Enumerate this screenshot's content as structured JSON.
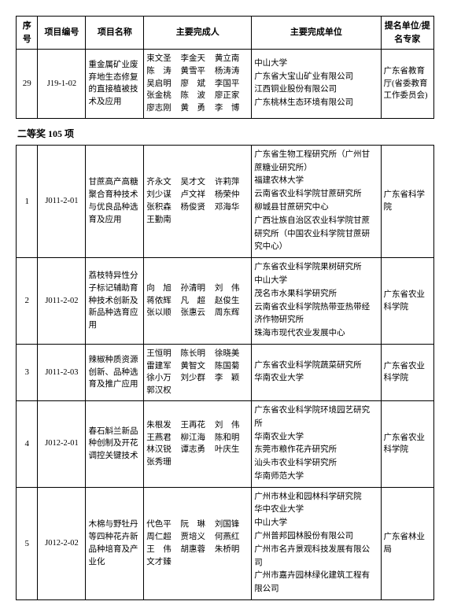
{
  "headers": {
    "seq": "序号",
    "code": "项目编号",
    "name": "项目名称",
    "people": "主要完成人",
    "org": "主要完成单位",
    "nom": "提名单位/提名专家"
  },
  "section_heading": "二等奖 105 项",
  "top_row": {
    "seq": "29",
    "code": "J19-1-02",
    "name": "重金属矿业废弃地生态修复的直接植被技术及应用",
    "people": [
      "束文圣",
      "李金天",
      "黄立南",
      "陈　涛",
      "黄雪平",
      "杨涛涛",
      "吴启明",
      "廖　斌",
      "李国平",
      "张金桃",
      "陈　波",
      "廖正家",
      "廖志刚",
      "黄　勇",
      "李　博"
    ],
    "org": [
      "中山大学",
      "广东省大宝山矿业有限公司",
      "江西铜业股份有限公司",
      "广东桃林生态环境有限公司"
    ],
    "nom": "广东省教育厅(省委教育工作委员会)"
  },
  "rows": [
    {
      "seq": "1",
      "code": "J011-2-01",
      "name": "甘蔗高产高糖聚合育种技术与优良品种选育及应用",
      "people": [
        "齐永文",
        "吴才文",
        "许莉萍",
        "刘少谋",
        "卢文祥",
        "杨荣仲",
        "张积森",
        "杨俊贤",
        "邓海华",
        "王勤南"
      ],
      "org": [
        "广东省生物工程研究所（广州甘蔗糖业研究所）",
        "福建农林大学",
        "云南省农业科学院甘蔗研究所",
        "柳城县甘蔗研究中心",
        "广西壮族自治区农业科学院甘蔗研究所（中国农业科学院甘蔗研究中心）"
      ],
      "nom": "广东省科学院"
    },
    {
      "seq": "2",
      "code": "J011-2-02",
      "name": "荔枝特异性分子标记辅助育种技术创新及新品种选育应用",
      "people": [
        "向　旭",
        "孙清明",
        "刘　伟",
        "蒋侬辉",
        "凡　超",
        "赵俊生",
        "张以顺",
        "张惠云",
        "周东辉"
      ],
      "org": [
        "广东省农业科学院果树研究所",
        "中山大学",
        "茂名市水果科学研究所",
        "云南省农业科学院热带亚热带经济作物研究所",
        "珠海市现代农业发展中心"
      ],
      "nom": "广东省农业科学院"
    },
    {
      "seq": "3",
      "code": "J011-2-03",
      "name": "辣椒种质资源创新、品种选育及推广应用",
      "people": [
        "王恒明",
        "陈长明",
        "徐晓美",
        "雷建军",
        "黄智文",
        "陈国菊",
        "徐小万",
        "刘少群",
        "李　颖",
        "郭汉权"
      ],
      "org": [
        "广东省农业科学院蔬菜研究所",
        "华南农业大学"
      ],
      "nom": "广东省农业科学院"
    },
    {
      "seq": "4",
      "code": "J012-2-01",
      "name": "春石斛兰新品种创制及开花调控关键技术",
      "people": [
        "朱根发",
        "王再花",
        "刘　伟",
        "王燕君",
        "柳江海",
        "陈和明",
        "林汉锐",
        "谭志勇",
        "叶庆生",
        "张秀珊"
      ],
      "org": [
        "广东省农业科学院环境园艺研究所",
        "华南农业大学",
        "东莞市粮作花卉研究所",
        "汕头市农业科学研究所",
        "华南师范大学"
      ],
      "nom": "广东省农业科学院"
    },
    {
      "seq": "5",
      "code": "J012-2-02",
      "name": "木棉与野牡丹等四种花卉新品种培育及产业化",
      "people": [
        "代色平",
        "阮　琳",
        "刘国锋",
        "周仁超",
        "贾培义",
        "何燕红",
        "王　伟",
        "胡惠蓉",
        "朱桥明",
        "文才臻"
      ],
      "org": [
        "广州市林业和园林科学研究院",
        "华中农业大学",
        "中山大学",
        "广州普邦园林股份有限公司",
        "广州市名卉景观科技发展有限公司",
        "广州市嘉卉园林绿化建筑工程有限公司"
      ],
      "nom": "广东省林业局"
    }
  ]
}
